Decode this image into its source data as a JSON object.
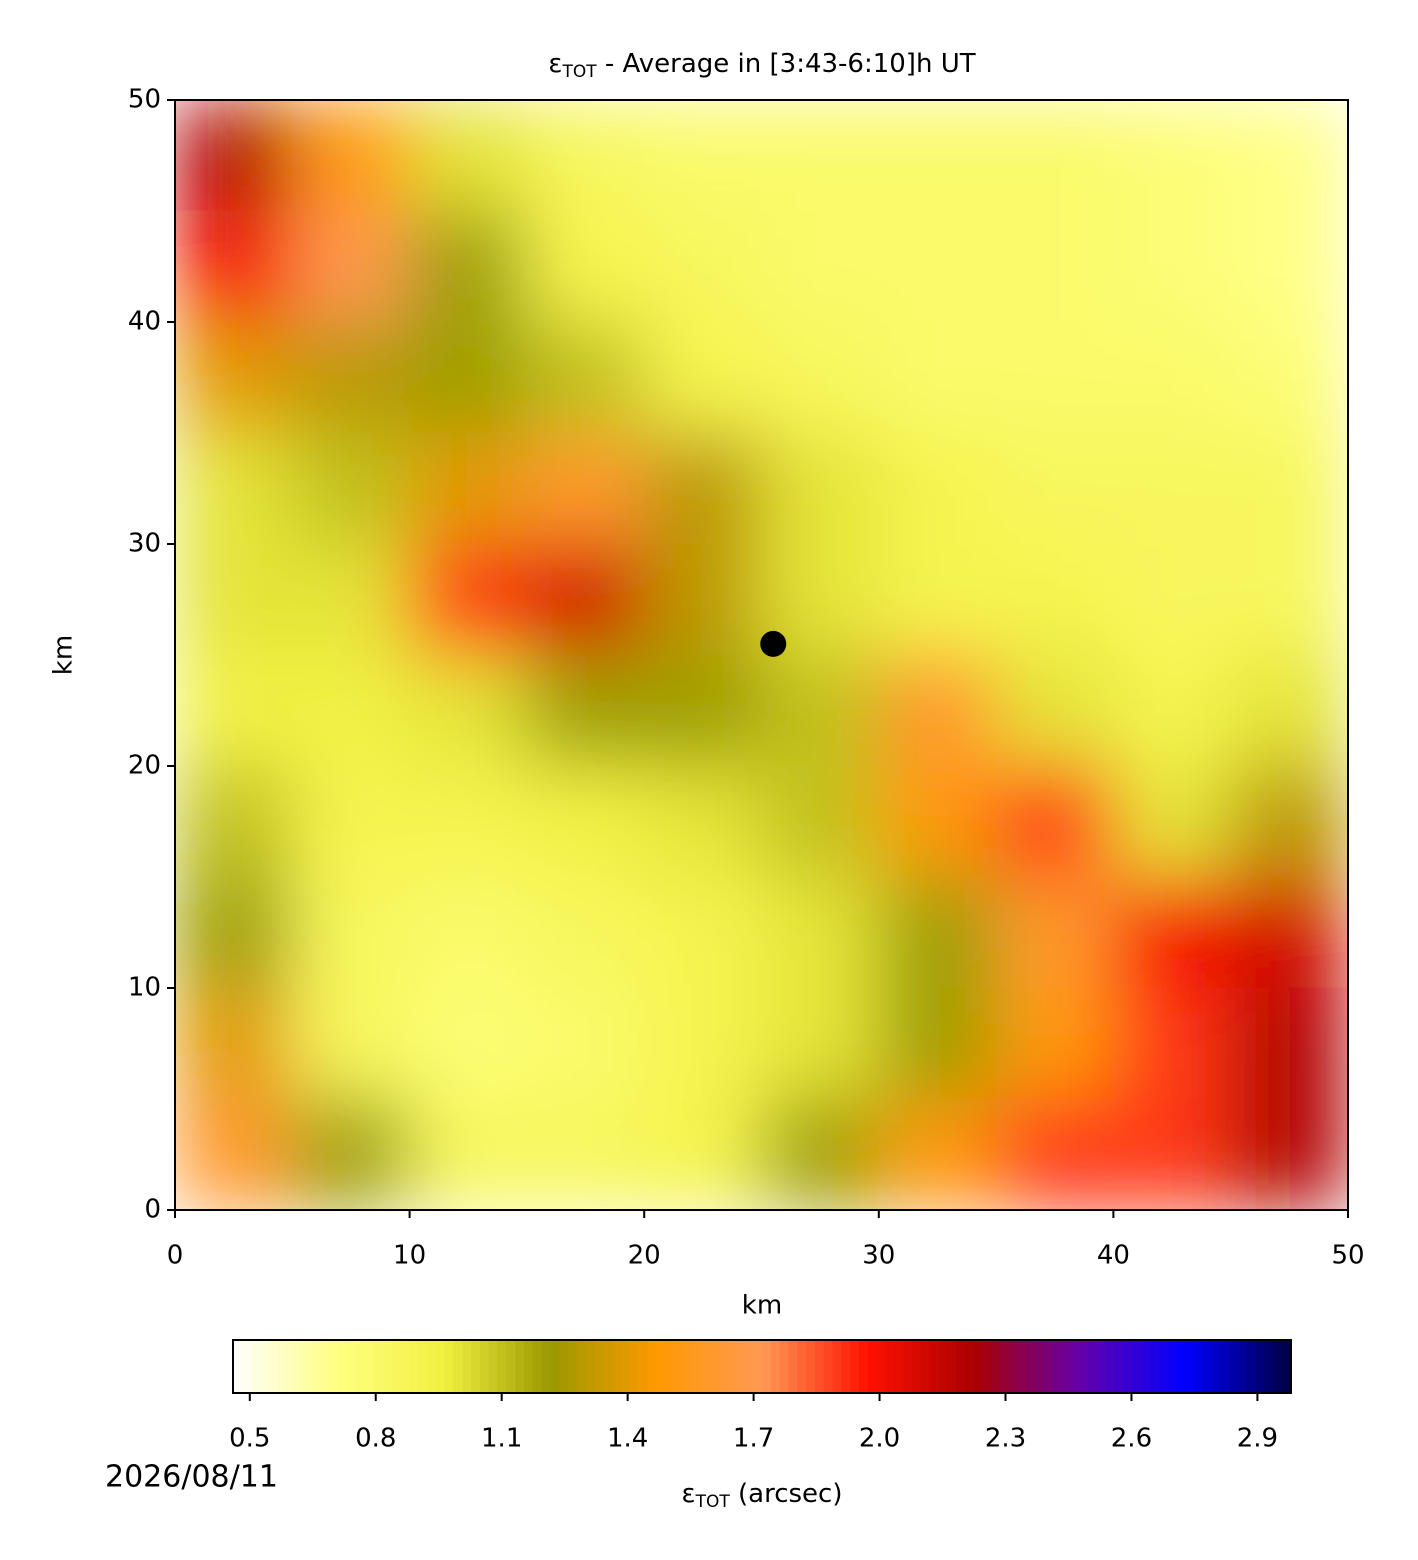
{
  "chart_data": {
    "type": "heatmap",
    "title": {
      "symbol": "ε",
      "sub": "TOT",
      "rest": " - Average in [3:43-6:10]h UT"
    },
    "x_label": "km",
    "y_label": "km",
    "xlim": [
      0,
      50
    ],
    "ylim": [
      0,
      50
    ],
    "xticks": [
      0,
      10,
      20,
      30,
      40,
      50
    ],
    "yticks": [
      0,
      10,
      20,
      30,
      40,
      50
    ],
    "z": [
      [
        2.2,
        1.5,
        1.0,
        0.85,
        0.8,
        0.8,
        0.8,
        0.8,
        0.75,
        0.7
      ],
      [
        2.0,
        1.7,
        1.2,
        0.9,
        0.85,
        0.8,
        0.8,
        0.8,
        0.75,
        0.7
      ],
      [
        1.4,
        1.3,
        1.2,
        1.1,
        0.9,
        0.85,
        0.8,
        0.8,
        0.8,
        0.75
      ],
      [
        1.0,
        1.1,
        1.4,
        1.6,
        1.3,
        1.0,
        0.9,
        0.85,
        0.85,
        0.85
      ],
      [
        1.0,
        1.0,
        1.9,
        2.1,
        1.3,
        1.0,
        0.9,
        0.9,
        0.85,
        0.85
      ],
      [
        0.95,
        0.95,
        1.0,
        1.2,
        1.2,
        1.1,
        1.6,
        1.0,
        0.9,
        1.0
      ],
      [
        1.1,
        0.9,
        0.9,
        0.95,
        1.0,
        1.1,
        1.5,
        1.9,
        1.0,
        1.3
      ],
      [
        1.2,
        0.85,
        0.8,
        0.85,
        0.9,
        1.0,
        1.2,
        1.6,
        2.0,
        2.1
      ],
      [
        1.4,
        0.85,
        0.75,
        0.8,
        0.9,
        1.0,
        1.2,
        1.5,
        1.9,
        2.2
      ],
      [
        1.6,
        1.2,
        0.85,
        0.85,
        0.9,
        1.2,
        1.5,
        1.9,
        1.9,
        2.2
      ]
    ],
    "marker": {
      "x": 25.5,
      "y": 25.5,
      "color": "#000000"
    },
    "colorbar": {
      "label": {
        "symbol": "ε",
        "sub": "TOT",
        "rest": " (arcsec)"
      },
      "clim": [
        0.46,
        2.98
      ],
      "colors": [
        "#ffffff",
        "#ffff80",
        "#f0f040",
        "#999900",
        "#ff9900",
        "#ff9955",
        "#ff1100",
        "#aa0000",
        "#6600aa",
        "#0000ff",
        "#000044"
      ],
      "ticks": [
        0.5,
        0.8,
        1.1,
        1.4,
        1.7,
        {
          "value": 2,
          "label": "2.0"
        },
        2.3,
        2.6,
        2.9
      ]
    },
    "date": "2026/08/11"
  }
}
